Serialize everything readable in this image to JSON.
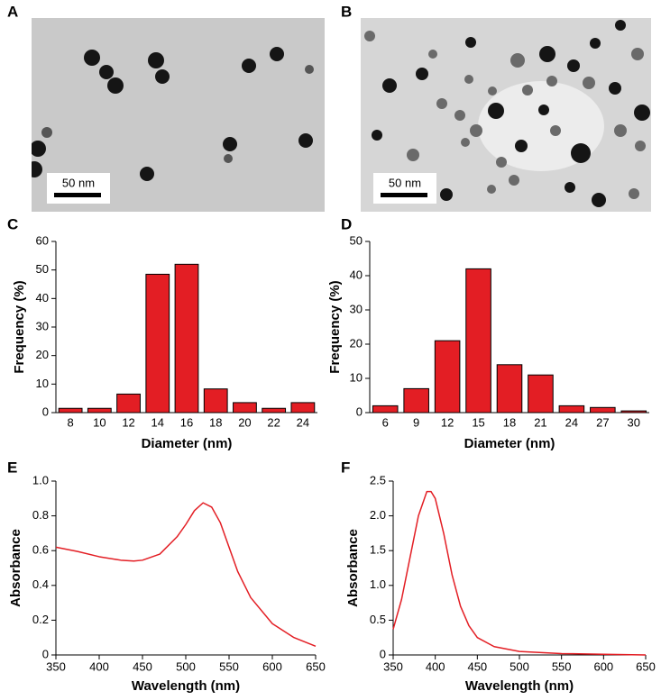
{
  "images": [
    {
      "label": "A",
      "scale_bar": "50 nm"
    },
    {
      "label": "B",
      "scale_bar": "50 nm"
    }
  ],
  "chart_data": [
    {
      "type": "bar",
      "panel_label": "C",
      "x_label": "Diameter (nm)",
      "y_label": "Frequency (%)",
      "categories": [
        "8",
        "10",
        "12",
        "14",
        "16",
        "18",
        "20",
        "22",
        "24"
      ],
      "values": [
        1.5,
        1.5,
        6.5,
        48.5,
        52,
        8.3,
        3.5,
        1.5,
        3.5
      ],
      "color": "#e31e24",
      "ylim": [
        0,
        60
      ],
      "yticks": [
        0,
        10,
        20,
        30,
        40,
        50,
        60
      ]
    },
    {
      "type": "bar",
      "panel_label": "D",
      "x_label": "Diameter (nm)",
      "y_label": "Frequency (%)",
      "categories": [
        "6",
        "9",
        "12",
        "15",
        "18",
        "21",
        "24",
        "27",
        "30"
      ],
      "values": [
        2,
        7,
        21,
        42,
        14,
        11,
        2,
        1.5,
        0.5
      ],
      "color": "#e31e24",
      "ylim": [
        0,
        50
      ],
      "yticks": [
        0,
        10,
        20,
        30,
        40,
        50
      ]
    },
    {
      "type": "line",
      "panel_label": "E",
      "x_label": "Wavelength (nm)",
      "y_label": "Absorbance",
      "x": [
        350,
        375,
        400,
        425,
        440,
        450,
        470,
        490,
        500,
        510,
        520,
        530,
        540,
        550,
        560,
        575,
        600,
        625,
        650
      ],
      "values": [
        0.62,
        0.595,
        0.565,
        0.545,
        0.54,
        0.545,
        0.58,
        0.68,
        0.75,
        0.83,
        0.875,
        0.85,
        0.76,
        0.62,
        0.48,
        0.33,
        0.18,
        0.1,
        0.05
      ],
      "color": "#e31e24",
      "xlim": [
        350,
        650
      ],
      "xticks": [
        350,
        400,
        450,
        500,
        550,
        600,
        650
      ],
      "ylim": [
        0,
        1
      ],
      "yticks": [
        0,
        0.2,
        0.4,
        0.6,
        0.8,
        {
          "value": 1,
          "label": "1.0"
        }
      ]
    },
    {
      "type": "line",
      "panel_label": "F",
      "x_label": "Wavelength (nm)",
      "y_label": "Absorbance",
      "x": [
        350,
        360,
        370,
        380,
        390,
        395,
        400,
        410,
        420,
        430,
        440,
        450,
        470,
        500,
        550,
        600,
        650
      ],
      "values": [
        0.37,
        0.8,
        1.4,
        2.0,
        2.35,
        2.35,
        2.25,
        1.75,
        1.15,
        0.7,
        0.42,
        0.25,
        0.12,
        0.05,
        0.02,
        0.01,
        0
      ],
      "color": "#e31e24",
      "xlim": [
        350,
        650
      ],
      "xticks": [
        350,
        400,
        450,
        500,
        550,
        600,
        650
      ],
      "ylim": [
        0,
        2.5
      ],
      "yticks": [
        0,
        0.5,
        {
          "value": 1,
          "label": "1.0"
        },
        1.5,
        {
          "value": 2,
          "label": "2.0"
        },
        2.5
      ]
    }
  ]
}
